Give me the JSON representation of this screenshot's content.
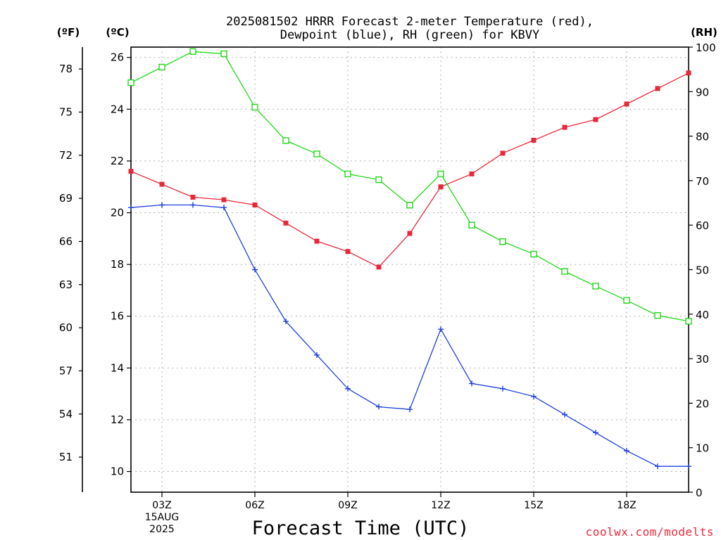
{
  "chart_data": {
    "type": "line",
    "title": [
      "2025081502 HRRR Forecast 2-meter Temperature (red),",
      "Dewpoint (blue), RH (green) for KBVY"
    ],
    "xlabel": "Forecast Time (UTC)",
    "credit": "coolwx.com/modelts",
    "left_unit_f": "(ºF)",
    "left_unit_c": "(ºC)",
    "right_unit": "(RH)",
    "ylim_c": [
      9.2,
      26.4
    ],
    "ylim_rh": [
      0,
      100
    ],
    "y_ticks_c": [
      "10",
      "12",
      "14",
      "16",
      "18",
      "20",
      "22",
      "24",
      "26"
    ],
    "y_ticks_f": [
      "51",
      "54",
      "57",
      "60",
      "63",
      "66",
      "69",
      "72",
      "75",
      "78"
    ],
    "y_ticks_rh": [
      "0",
      "10",
      "20",
      "30",
      "40",
      "50",
      "60",
      "70",
      "80",
      "90",
      "100"
    ],
    "x_hours": [
      2,
      3,
      4,
      5,
      6,
      7,
      8,
      9,
      10,
      11,
      12,
      13,
      14,
      15,
      16,
      17,
      18,
      19,
      20
    ],
    "x_tick_labels": [
      {
        "h": 3,
        "lines": [
          "03Z",
          "15AUG",
          "2025"
        ]
      },
      {
        "h": 6,
        "lines": [
          "06Z"
        ]
      },
      {
        "h": 9,
        "lines": [
          "09Z"
        ]
      },
      {
        "h": 12,
        "lines": [
          "12Z"
        ]
      },
      {
        "h": 15,
        "lines": [
          "15Z"
        ]
      },
      {
        "h": 18,
        "lines": [
          "18Z"
        ]
      }
    ],
    "grid": true,
    "series": [
      {
        "name": "Temperature",
        "axis": "c",
        "color": "#e8283a",
        "marker": "filled-square",
        "values": [
          21.6,
          21.1,
          20.6,
          20.5,
          20.3,
          19.6,
          18.9,
          18.5,
          17.9,
          19.2,
          21.0,
          21.5,
          22.3,
          22.8,
          23.3,
          23.6,
          24.2,
          24.8,
          25.4
        ]
      },
      {
        "name": "Dewpoint",
        "axis": "c",
        "color": "#1f3fe0",
        "marker": "plus",
        "values": [
          20.2,
          20.3,
          20.3,
          20.2,
          17.8,
          15.8,
          14.5,
          13.2,
          12.5,
          12.4,
          15.5,
          13.4,
          13.2,
          12.9,
          12.2,
          11.5,
          10.8,
          10.2,
          10.2
        ]
      },
      {
        "name": "RH",
        "axis": "rh",
        "color": "#22d81a",
        "marker": "open-square",
        "values": [
          92,
          95.5,
          99,
          98.5,
          86.5,
          79,
          76,
          71.5,
          70.2,
          64.5,
          71.5,
          60,
          56.3,
          53.5,
          49.6,
          46.3,
          43.1,
          39.7,
          38.4
        ]
      }
    ]
  }
}
